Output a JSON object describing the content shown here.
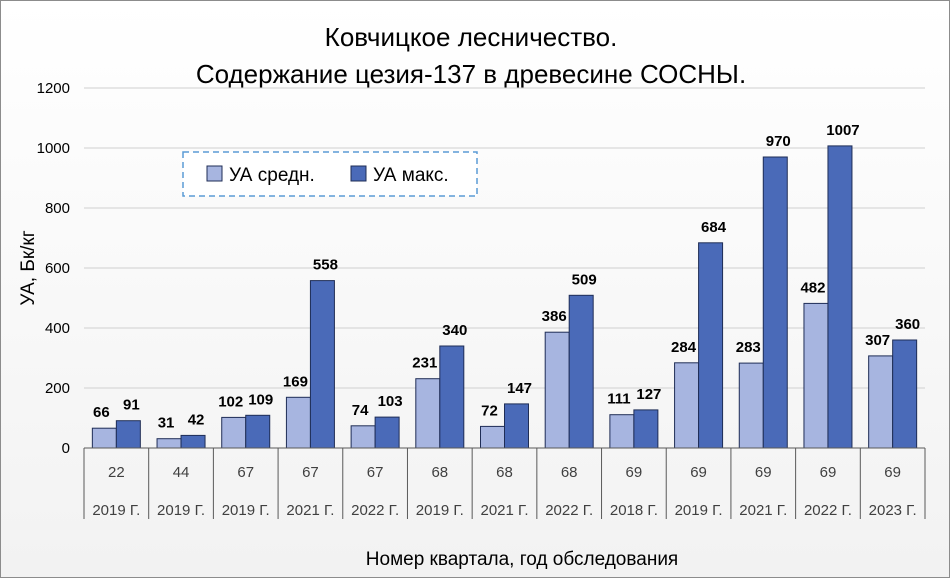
{
  "chart_data": {
    "type": "bar",
    "title_lines": [
      "Ковчицкое лесничество.",
      "Содержание цезия-137 в древесине СОСНЫ."
    ],
    "xlabel": "Номер квартала, год обследования",
    "ylabel": "УА, Бк/кг",
    "ylim": [
      0,
      1200
    ],
    "yticks": [
      0,
      200,
      400,
      600,
      800,
      1000,
      1200
    ],
    "grid": true,
    "legend_position": "top-left",
    "categories_level1": [
      "22",
      "44",
      "67",
      "67",
      "67",
      "68",
      "68",
      "68",
      "69",
      "69",
      "69",
      "69",
      "69"
    ],
    "categories_level2": [
      "2019 Г.",
      "2019 Г.",
      "2019 Г.",
      "2021 Г.",
      "2022 Г.",
      "2019 Г.",
      "2021 Г.",
      "2022 Г.",
      "2018 Г.",
      "2019 Г.",
      "2021 Г.",
      "2022 Г.",
      "2023 Г."
    ],
    "series": [
      {
        "name": "УА средн.",
        "color": "#a7b5e0",
        "values": [
          66,
          31,
          102,
          169,
          74,
          231,
          72,
          386,
          111,
          284,
          283,
          482,
          307
        ]
      },
      {
        "name": "УА макс.",
        "color": "#4a6ab8",
        "values": [
          91,
          42,
          109,
          558,
          103,
          340,
          147,
          509,
          127,
          684,
          970,
          1007,
          360
        ]
      }
    ]
  }
}
